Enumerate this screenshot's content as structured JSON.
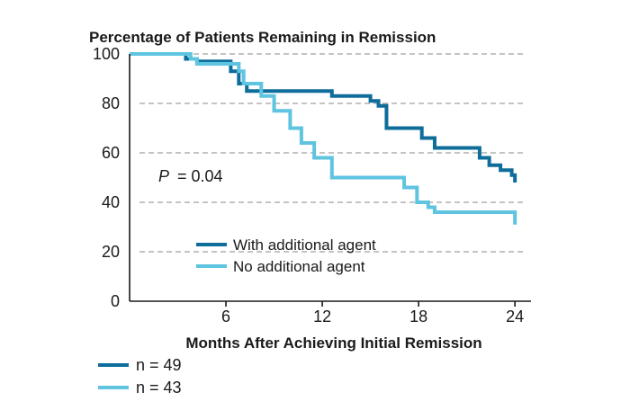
{
  "chart_data": {
    "type": "line",
    "step": true,
    "title": "Percentage of Patients Remaining in Remission",
    "xlabel": "Months After Achieving Initial Remission",
    "ylabel": "",
    "xlim": [
      0,
      25
    ],
    "ylim": [
      0,
      100
    ],
    "xticks": [
      6,
      12,
      18,
      24
    ],
    "yticks": [
      0,
      20,
      40,
      60,
      80,
      100
    ],
    "grid": "dashed horizontal",
    "annotation": {
      "italic": "P",
      "text": "= 0.04"
    },
    "series": [
      {
        "name": "With additional agent",
        "n_label": "n = 49",
        "color": "#0e6d9a",
        "x": [
          0,
          3.5,
          4.2,
          6.3,
          6.8,
          7.3,
          12,
          12.6,
          15,
          15.5,
          16,
          17.6,
          18.2,
          19,
          21.8,
          22.4,
          23.1,
          23.8,
          24
        ],
        "y": [
          100,
          98,
          97,
          93,
          88,
          85,
          85,
          83,
          81,
          79,
          70,
          70,
          66,
          62,
          58,
          55,
          53,
          51,
          48
        ]
      },
      {
        "name": "No additional agent",
        "n_label": "n = 43",
        "color": "#5ec4e0",
        "x": [
          0,
          3.8,
          4.2,
          6.8,
          7.1,
          8.2,
          9.0,
          10.0,
          10.7,
          11.5,
          12.6,
          14.9,
          17.1,
          17.9,
          18.4,
          18.6,
          19.0,
          24
        ],
        "y": [
          100,
          98,
          96,
          93,
          88,
          83,
          77,
          70,
          64,
          58,
          50,
          50,
          46,
          40,
          40,
          38,
          36,
          31
        ]
      }
    ]
  }
}
